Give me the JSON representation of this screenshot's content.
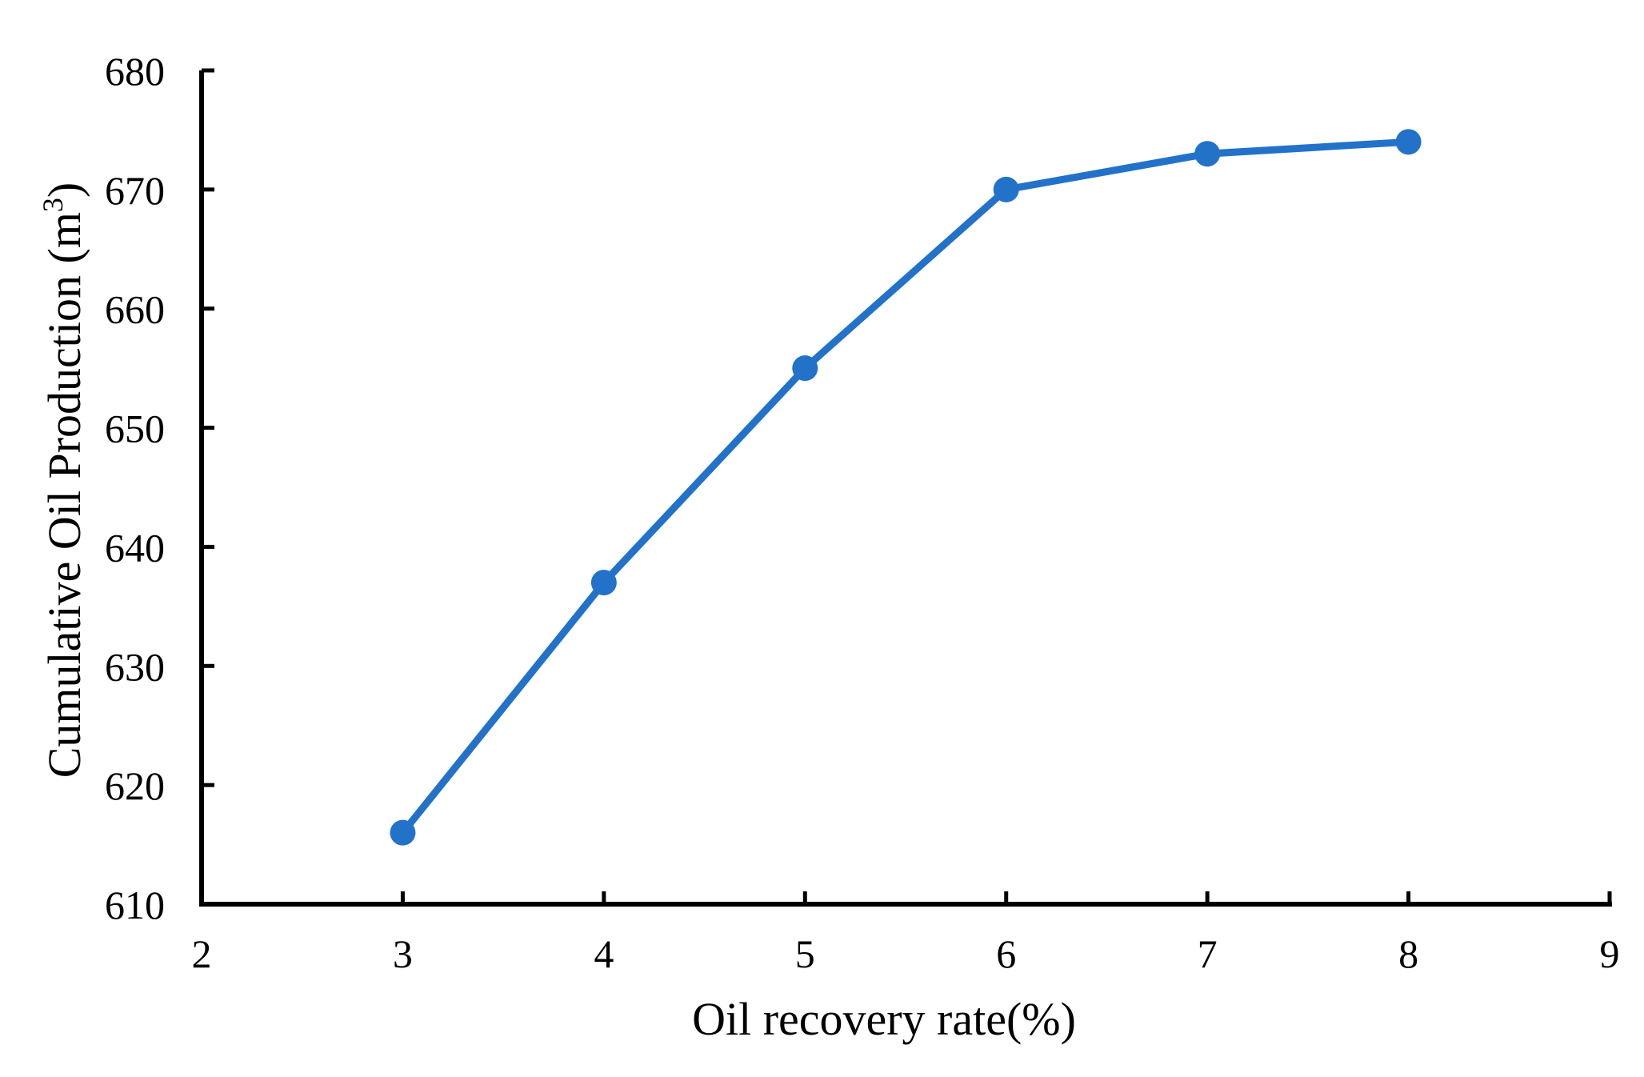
{
  "figure": {
    "background": "#FFFFFF"
  },
  "chart_data": {
    "type": "line",
    "title": "",
    "xlabel": "Oil recovery rate(%)",
    "ylabel": "Cumulative Oil Production (m³)",
    "ylabel_parts": {
      "main": "Cumulative Oil Production (m",
      "sup": "3",
      "close": ")"
    },
    "series": [
      {
        "name": "Cumulative Oil Production",
        "x": [
          3,
          4,
          5,
          6,
          7,
          8
        ],
        "y": [
          616,
          637,
          655,
          670,
          673,
          674
        ]
      }
    ],
    "xlim": [
      2,
      9
    ],
    "ylim": [
      610,
      680
    ],
    "x_ticks": [
      2,
      3,
      4,
      5,
      6,
      7,
      8,
      9
    ],
    "y_ticks": [
      610,
      620,
      630,
      640,
      650,
      660,
      670,
      680
    ],
    "grid": false,
    "legend": "none",
    "marker": "filled-circle",
    "colors": {
      "line": "#2272C9",
      "marker": "#2272C9",
      "axis": "#000000",
      "text": "#000000",
      "background": "#FFFFFF"
    }
  }
}
